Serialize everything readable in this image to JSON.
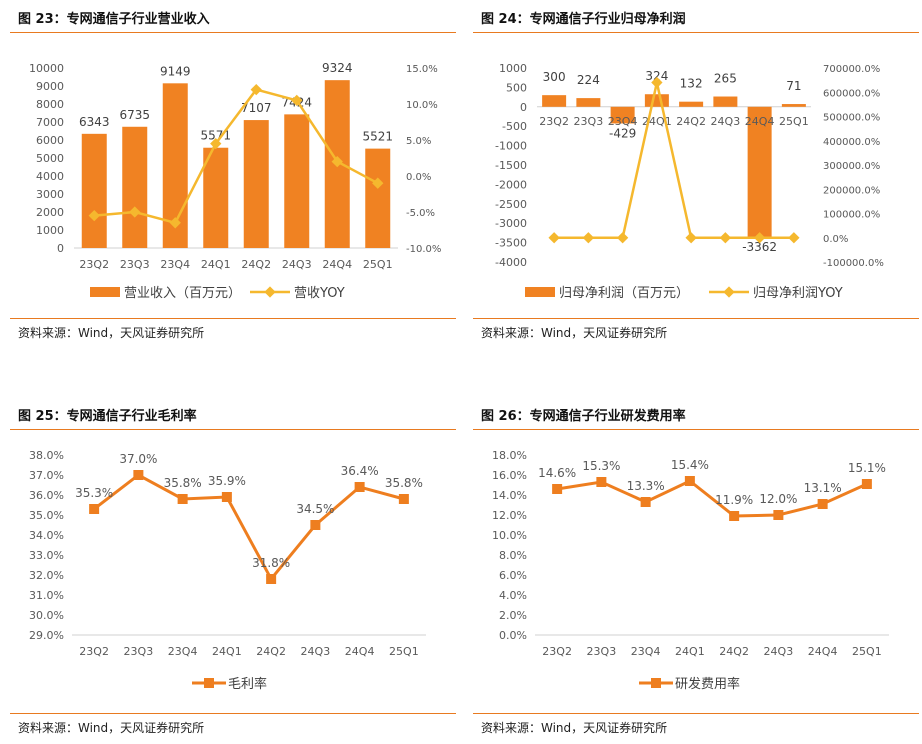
{
  "colors": {
    "accent": "#E87A20",
    "bar": "#F08222",
    "line": "#F5B82E",
    "line_orange": "#EE7E1F",
    "axis": "#D0D0D0",
    "text": "#595959"
  },
  "panels": [
    {
      "title": "图 23：专网通信子行业营业收入",
      "source": "资料来源：Wind，天风证券研究所"
    },
    {
      "title": "图 24：专网通信子行业归母净利润",
      "source": "资料来源：Wind，天风证券研究所"
    },
    {
      "title": "图 25：专网通信子行业毛利率",
      "source": "资料来源：Wind，天风证券研究所"
    },
    {
      "title": "图 26：专网通信子行业研发费用率",
      "source": "资料来源：Wind，天风证券研究所"
    }
  ],
  "chart_data": [
    {
      "type": "bar+line",
      "categories": [
        "23Q2",
        "23Q3",
        "23Q4",
        "24Q1",
        "24Q2",
        "24Q3",
        "24Q4",
        "25Q1"
      ],
      "series": [
        {
          "name": "营业收入（百万元）",
          "type": "bar",
          "axis": "left",
          "values": [
            6343,
            6735,
            9149,
            5571,
            7107,
            7424,
            9324,
            5521
          ],
          "labels": [
            "6343",
            "6735",
            "9149",
            "5571",
            "7107",
            "7424",
            "9324",
            "5521"
          ]
        },
        {
          "name": "营收YOY",
          "type": "line",
          "axis": "right",
          "values": [
            -5.5,
            -5.0,
            -6.5,
            4.5,
            12.0,
            10.5,
            2.0,
            -1.0
          ]
        }
      ],
      "y_left": {
        "min": 0,
        "max": 10000,
        "step": 1000,
        "ticks": [
          "0",
          "1000",
          "2000",
          "3000",
          "4000",
          "5000",
          "6000",
          "7000",
          "8000",
          "9000",
          "10000"
        ]
      },
      "y_right": {
        "min": -10,
        "max": 15,
        "step": 5,
        "ticks": [
          "-10.0%",
          "-5.0%",
          "0.0%",
          "5.0%",
          "10.0%",
          "15.0%"
        ]
      },
      "legend": "bottom"
    },
    {
      "type": "bar+line",
      "categories": [
        "23Q2",
        "23Q3",
        "23Q4",
        "24Q1",
        "24Q2",
        "24Q3",
        "24Q4",
        "25Q1"
      ],
      "series": [
        {
          "name": "归母净利润（百万元）",
          "type": "bar",
          "axis": "left",
          "values": [
            300,
            224,
            -429,
            324,
            132,
            265,
            -3362,
            71
          ],
          "labels": [
            "300",
            "224",
            "-429",
            "324",
            "132",
            "265",
            "-3362",
            "71"
          ]
        },
        {
          "name": "归母净利润YOY",
          "type": "line",
          "axis": "right",
          "values": [
            0,
            0,
            0,
            640000,
            0,
            0,
            0,
            0
          ]
        }
      ],
      "y_left": {
        "min": -4000,
        "max": 1000,
        "step": 500,
        "ticks": [
          "-4000",
          "-3500",
          "-3000",
          "-2500",
          "-2000",
          "-1500",
          "-1000",
          "-500",
          "0",
          "500",
          "1000"
        ]
      },
      "y_right": {
        "min": -100000,
        "max": 700000,
        "step": 100000,
        "ticks": [
          "-100000.0%",
          "0.0%",
          "100000.0%",
          "200000.0%",
          "300000.0%",
          "400000.0%",
          "500000.0%",
          "600000.0%",
          "700000.0%"
        ]
      },
      "legend": "bottom"
    },
    {
      "type": "line",
      "categories": [
        "23Q2",
        "23Q3",
        "23Q4",
        "24Q1",
        "24Q2",
        "24Q3",
        "24Q4",
        "25Q1"
      ],
      "series": [
        {
          "name": "毛利率",
          "values": [
            35.3,
            37.0,
            35.8,
            35.9,
            31.8,
            34.5,
            36.4,
            35.8
          ],
          "labels": [
            "35.3%",
            "37.0%",
            "35.8%",
            "35.9%",
            "31.8%",
            "34.5%",
            "36.4%",
            "35.8%"
          ]
        }
      ],
      "y": {
        "min": 29,
        "max": 38,
        "step": 1,
        "ticks": [
          "29.0%",
          "30.0%",
          "31.0%",
          "32.0%",
          "33.0%",
          "34.0%",
          "35.0%",
          "36.0%",
          "37.0%",
          "38.0%"
        ]
      },
      "legend": "bottom"
    },
    {
      "type": "line",
      "categories": [
        "23Q2",
        "23Q3",
        "23Q4",
        "24Q1",
        "24Q2",
        "24Q3",
        "24Q4",
        "25Q1"
      ],
      "series": [
        {
          "name": "研发费用率",
          "values": [
            14.6,
            15.3,
            13.3,
            15.4,
            11.9,
            12.0,
            13.1,
            15.1
          ],
          "labels": [
            "14.6%",
            "15.3%",
            "13.3%",
            "15.4%",
            "11.9%",
            "12.0%",
            "13.1%",
            "15.1%"
          ]
        }
      ],
      "y": {
        "min": 0,
        "max": 18,
        "step": 2,
        "ticks": [
          "0.0%",
          "2.0%",
          "4.0%",
          "6.0%",
          "8.0%",
          "10.0%",
          "12.0%",
          "14.0%",
          "16.0%",
          "18.0%"
        ]
      },
      "legend": "bottom"
    }
  ]
}
